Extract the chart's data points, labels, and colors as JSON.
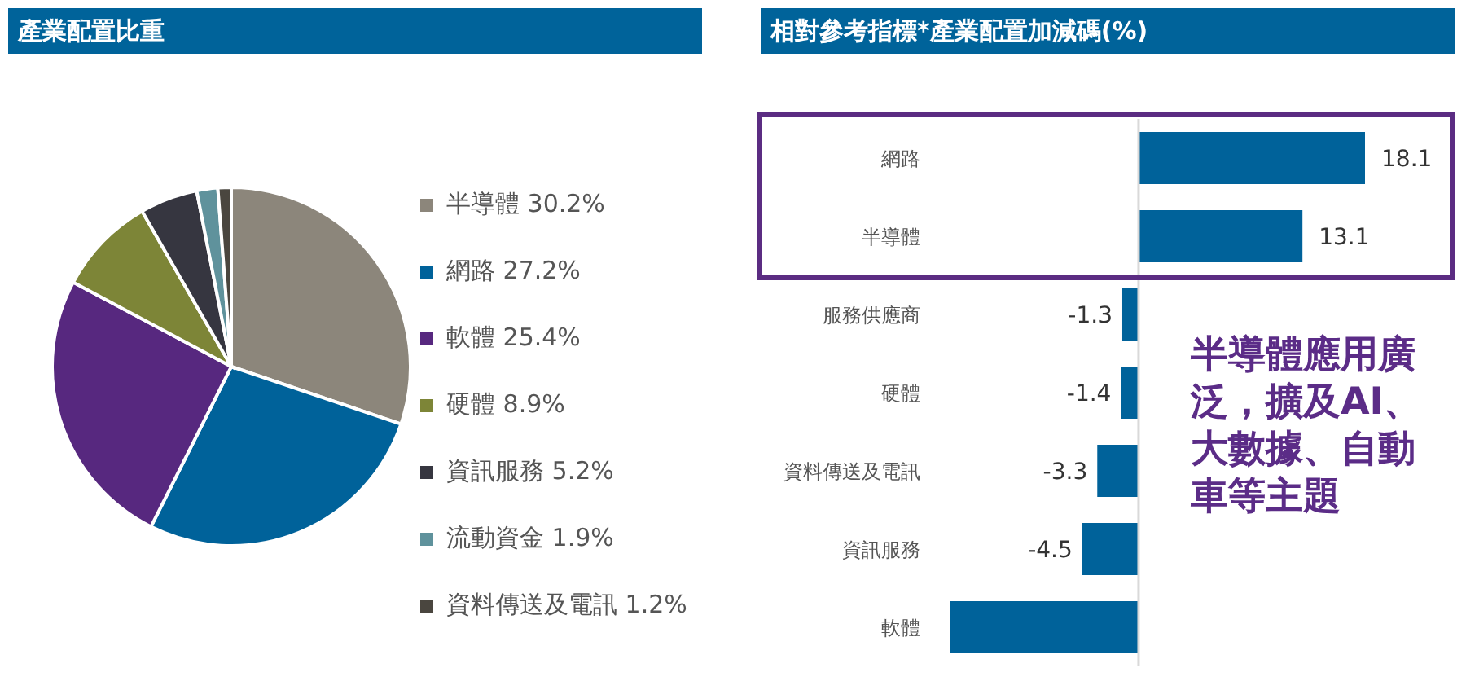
{
  "chart_data": [
    {
      "type": "pie",
      "title": "產業配置比重",
      "categories": [
        "半導體",
        "網路",
        "軟體",
        "硬體",
        "資訊服務",
        "流動資金",
        "資料傳送及電訊"
      ],
      "values": [
        30.2,
        27.2,
        25.4,
        8.9,
        5.2,
        1.9,
        1.2
      ],
      "value_labels": [
        "30.2%",
        "27.2%",
        "25.4%",
        "8.9%",
        "5.2%",
        "1.9%",
        "1.2%"
      ],
      "colors": [
        "#8c867b",
        "#00629a",
        "#57287f",
        "#7d8537",
        "#363640",
        "#5f929c",
        "#4a463f"
      ],
      "legend": "right"
    },
    {
      "type": "bar",
      "orientation": "horizontal",
      "title": "相對參考指標*產業配置加減碼(%)",
      "categories": [
        "網路",
        "半導體",
        "服務供應商",
        "硬體",
        "資料傳送及電訊",
        "資訊服務",
        "軟體"
      ],
      "values": [
        18.1,
        13.1,
        -1.3,
        -1.4,
        -3.3,
        -4.5,
        -15.1
      ],
      "value_labels": [
        "18.1",
        "13.1",
        "-1.3",
        "-1.4",
        "-3.3",
        "-4.5",
        null
      ],
      "color": "#00629a",
      "tick_labels": "y",
      "ref_lines": [
        {
          "axis": "x",
          "value": 0,
          "color": "#d9d9d9"
        }
      ],
      "annotations": [
        "半導體應用廣泛，擴及AI、大數據、自動車等主題"
      ]
    }
  ]
}
